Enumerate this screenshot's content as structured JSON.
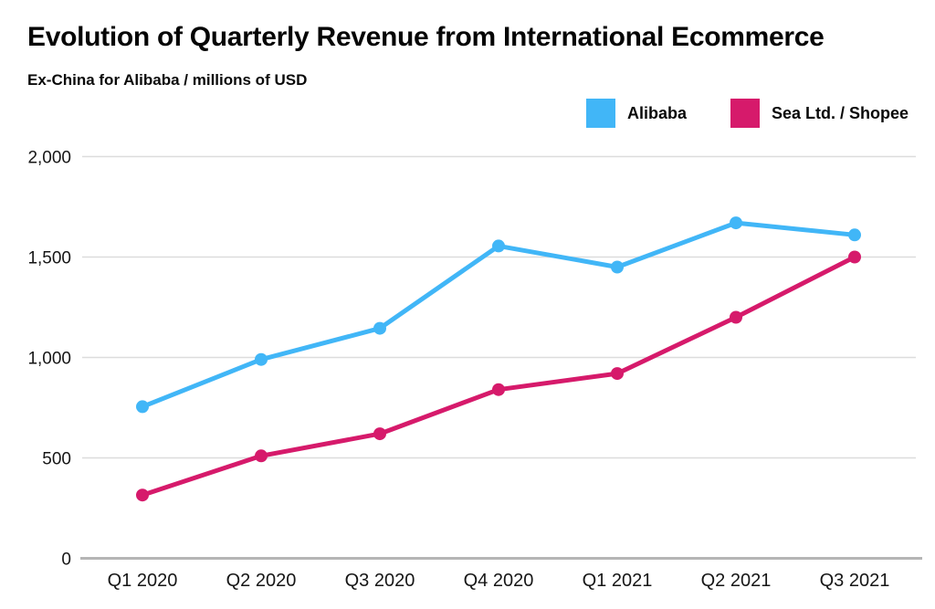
{
  "chart_data": {
    "type": "line",
    "title": "Evolution of Quarterly Revenue from International Ecommerce",
    "subtitle": "Ex-China for Alibaba / millions of USD",
    "categories": [
      "Q1 2020",
      "Q2 2020",
      "Q3 2020",
      "Q4 2020",
      "Q1 2021",
      "Q2 2021",
      "Q3 2021"
    ],
    "series": [
      {
        "name": "Alibaba",
        "color": "#41b6f7",
        "values": [
          755,
          990,
          1145,
          1555,
          1450,
          1670,
          1610
        ]
      },
      {
        "name": "Sea Ltd. / Shopee",
        "color": "#d61a6b",
        "values": [
          315,
          510,
          620,
          840,
          920,
          1200,
          1500
        ]
      }
    ],
    "xlabel": "",
    "ylabel": "",
    "ylim": [
      0,
      2000
    ],
    "yticks": [
      0,
      500,
      1000,
      1500,
      2000
    ],
    "grid": true,
    "legend_position": "top-right"
  }
}
